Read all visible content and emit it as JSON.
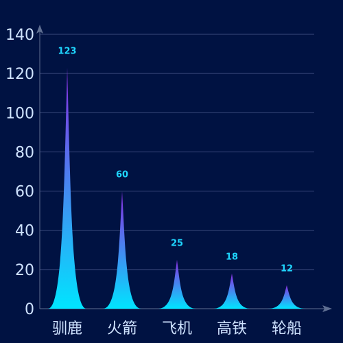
{
  "chart_data": {
    "type": "bar",
    "categories": [
      "驯鹿",
      "火箭",
      "飞机",
      "高铁",
      "轮船"
    ],
    "values": [
      123,
      60,
      25,
      18,
      12
    ],
    "title": "",
    "xlabel": "",
    "ylabel": "",
    "ylim": [
      0,
      140
    ],
    "yticks": [
      0,
      20,
      40,
      60,
      80,
      100,
      120,
      140
    ],
    "grid": true,
    "bar_style": "pictorial-spike",
    "colors": {
      "background": "#001242",
      "bar_top": "#8a2be2",
      "bar_bottom": "#00e5ff",
      "data_label": "#1fd6ff",
      "tick_label": "#cfe3ff",
      "grid": "#3a4a7c",
      "axis": "#5f6f92"
    }
  }
}
